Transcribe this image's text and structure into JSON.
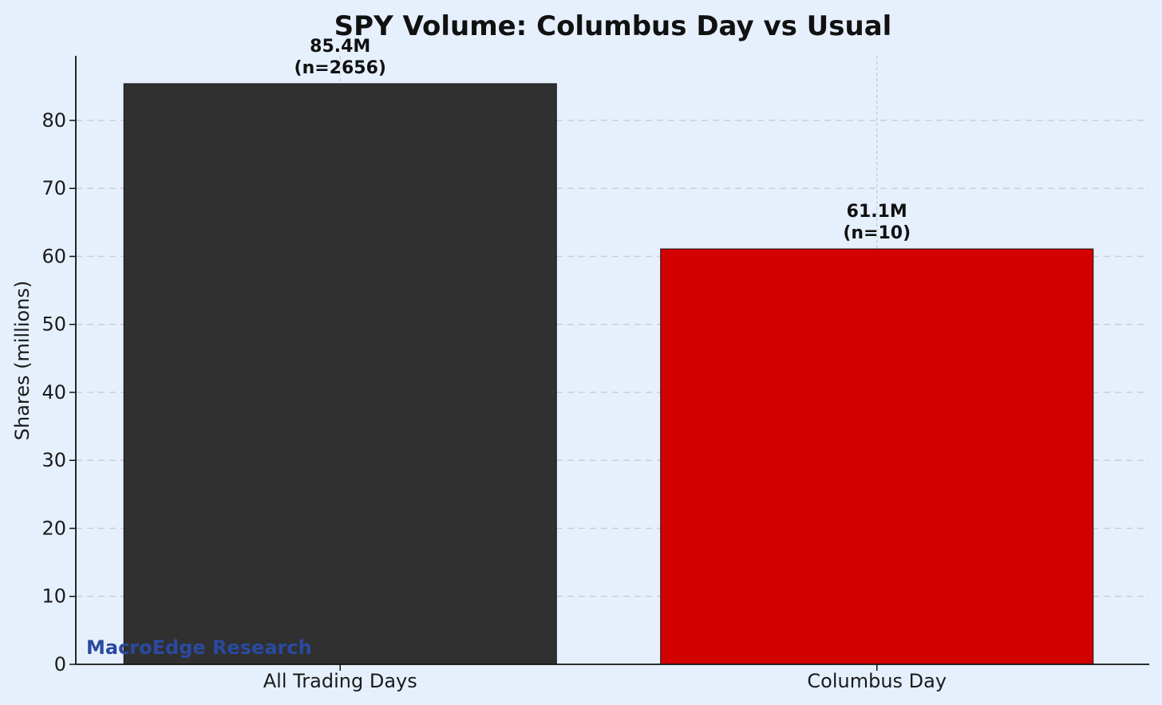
{
  "chart_data": {
    "type": "bar",
    "title": "SPY Volume: Columbus Day vs Usual",
    "xlabel": "",
    "ylabel": "Shares (millions)",
    "ylim": [
      0,
      89.5
    ],
    "yticks": [
      0,
      10,
      20,
      30,
      40,
      50,
      60,
      70,
      80
    ],
    "grid": "y-dashed",
    "categories": [
      "All Trading Days",
      "Columbus Day"
    ],
    "values": [
      85.4,
      61.1
    ],
    "bar_labels": [
      {
        "value_text": "85.4M",
        "n_text": "(n=2656)"
      },
      {
        "value_text": "61.1M",
        "n_text": "(n=10)"
      }
    ],
    "colors": [
      "#303030",
      "#d20000"
    ],
    "watermark": "MacroEdge Research",
    "watermark_color": "#2a4aa0",
    "background_color": "#e6f0fd"
  }
}
